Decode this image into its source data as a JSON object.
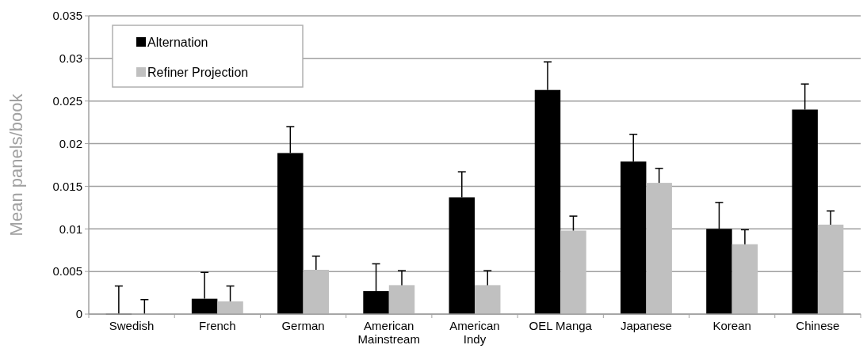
{
  "chart_data": {
    "type": "bar",
    "ylabel": "Mean panels/book",
    "categories": [
      "Swedish",
      "French",
      "German",
      "American Mainstream",
      "American Indy",
      "OEL Manga",
      "Japanese",
      "Korean",
      "Chinese"
    ],
    "series": [
      {
        "name": "Alternation",
        "color": "#000000",
        "values": [
          0,
          0.0018,
          0.0189,
          0.0027,
          0.0137,
          0.0263,
          0.0179,
          0.01,
          0.024
        ],
        "errors": [
          [
            0,
            0.0033
          ],
          [
            0.0018,
            0.0049
          ],
          [
            0.0189,
            0.022
          ],
          [
            0.0027,
            0.0059
          ],
          [
            0.0137,
            0.0167
          ],
          [
            0.0263,
            0.0296
          ],
          [
            0.0179,
            0.0211
          ],
          [
            0.01,
            0.0131
          ],
          [
            0.024,
            0.027
          ]
        ]
      },
      {
        "name": "Refiner Projection",
        "color": "#c0c0c0",
        "values": [
          0,
          0.0015,
          0.0052,
          0.0034,
          0.0034,
          0.0098,
          0.0154,
          0.0082,
          0.0105
        ],
        "errors": [
          [
            0,
            0.0017
          ],
          [
            0.0015,
            0.0033
          ],
          [
            0.0052,
            0.0068
          ],
          [
            0.0034,
            0.0051
          ],
          [
            0.0034,
            0.0051
          ],
          [
            0.0098,
            0.0115
          ],
          [
            0.0154,
            0.0171
          ],
          [
            0.0082,
            0.0099
          ],
          [
            0.0105,
            0.0121
          ]
        ]
      }
    ],
    "ylim": [
      0,
      0.035
    ],
    "yticks": [
      0,
      0.005,
      0.01,
      0.015,
      0.02,
      0.025,
      0.03,
      0.035
    ],
    "grid": "y",
    "legend": "top left"
  }
}
